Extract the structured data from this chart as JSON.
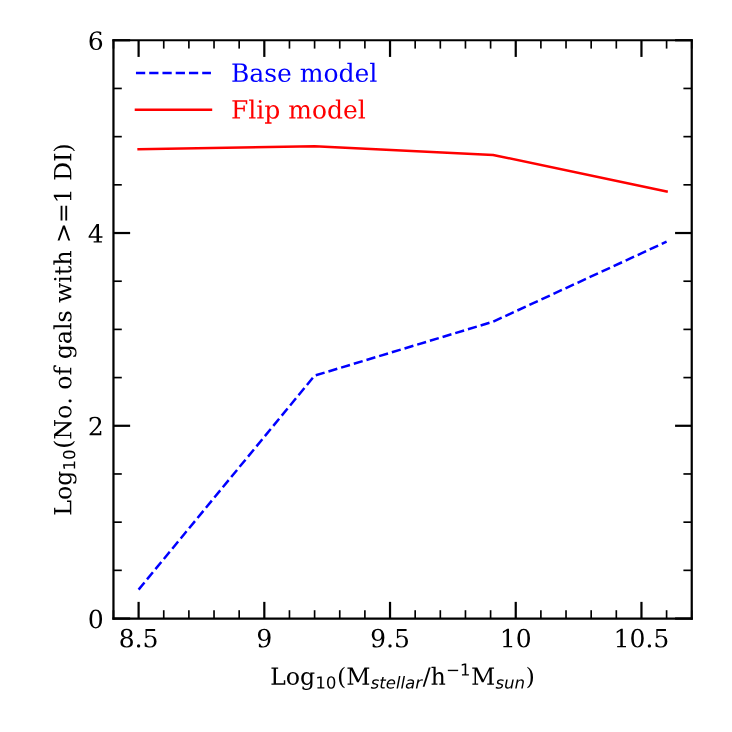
{
  "chart_data": {
    "type": "line",
    "xlabel": "Log$_{10}$(M$_{stellar}$/h$^{−1}$M$_{sun}$)",
    "ylabel": "Log$_{10}$(No. of gals with >=1 DI)",
    "xlim": [
      8.4,
      10.7
    ],
    "ylim": [
      0,
      6
    ],
    "xticks": [
      8.5,
      9,
      9.5,
      10,
      10.5
    ],
    "yticks": [
      0,
      2,
      4,
      6
    ],
    "legend": "top left",
    "grid": false,
    "marker": "none",
    "series": [
      {
        "name": "Base model",
        "color": "#0000ff",
        "line_style": "dashed",
        "x": [
          8.5,
          9.2,
          9.91,
          10.6
        ],
        "values": [
          0.3,
          2.52,
          3.08,
          3.91
        ]
      },
      {
        "name": "Flip model",
        "color": "#ff0000",
        "line_style": "solid",
        "x": [
          8.5,
          9.2,
          9.91,
          10.6
        ],
        "values": [
          4.87,
          4.9,
          4.81,
          4.43
        ]
      }
    ]
  }
}
